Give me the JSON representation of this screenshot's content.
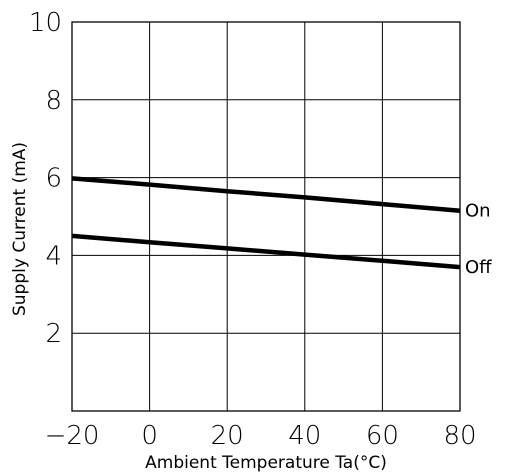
{
  "chart_data": {
    "type": "line",
    "xlabel": "Ambient Temperature Ta(°C)",
    "ylabel": "Supply Current (mA)",
    "xlim": [
      -20,
      80
    ],
    "ylim": [
      0,
      10
    ],
    "x_ticks": [
      -20,
      0,
      20,
      40,
      60,
      80
    ],
    "y_ticks": [
      2,
      4,
      6,
      8,
      10
    ],
    "x_tick_labels": [
      "−20",
      "0",
      "20",
      "40",
      "60",
      "80"
    ],
    "y_tick_labels": [
      "2",
      "4",
      "6",
      "8",
      "10"
    ],
    "grid": true,
    "series": [
      {
        "name": "On",
        "x": [
          -20,
          0,
          20,
          40,
          60,
          80
        ],
        "y": [
          5.98,
          5.82,
          5.65,
          5.49,
          5.32,
          5.15
        ]
      },
      {
        "name": "Off",
        "x": [
          -20,
          0,
          20,
          40,
          60,
          80
        ],
        "y": [
          4.5,
          4.34,
          4.18,
          4.02,
          3.86,
          3.7
        ]
      }
    ],
    "colors": {
      "line": "#000000",
      "grid": "#000000",
      "background": "#ffffff"
    }
  }
}
